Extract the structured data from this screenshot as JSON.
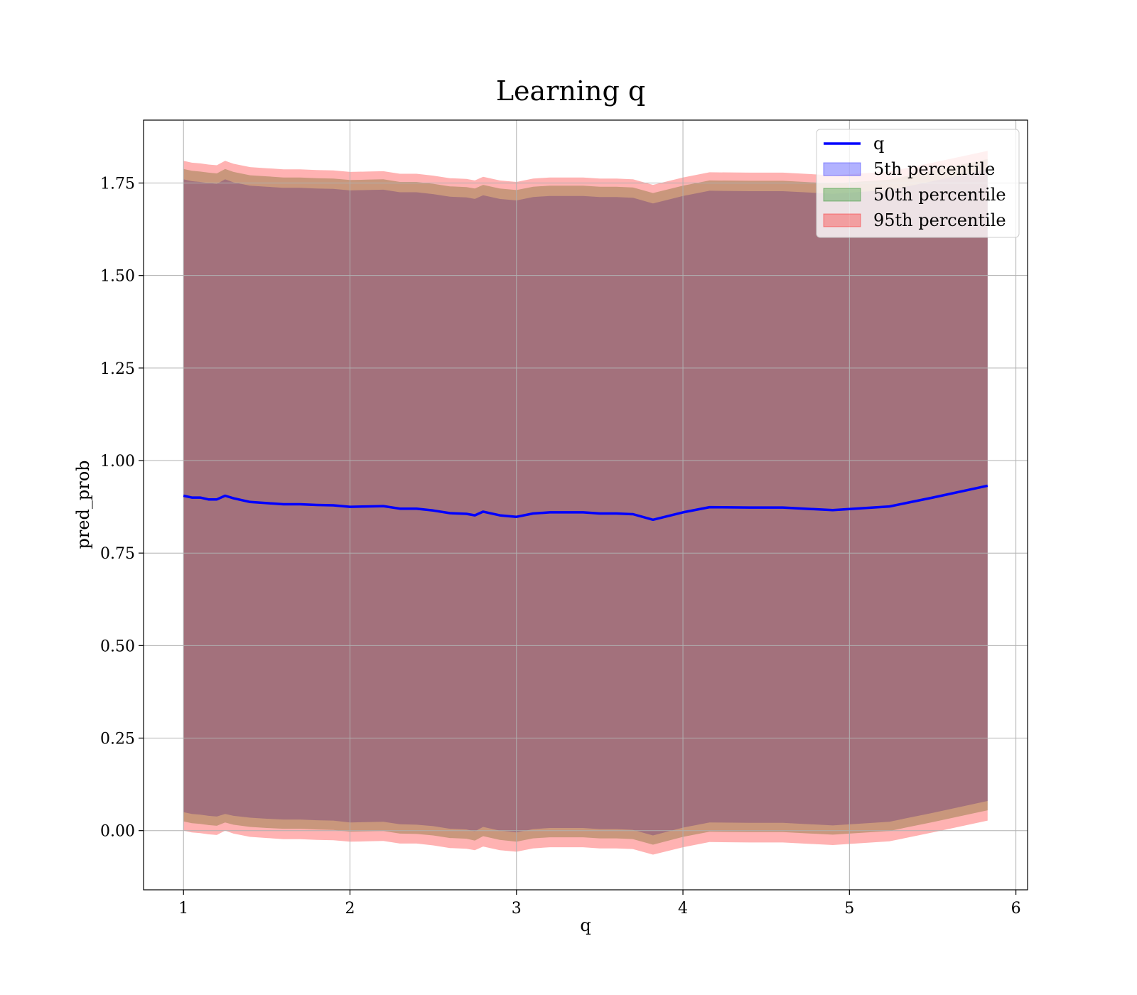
{
  "chart_data": {
    "type": "line",
    "title": "Learning q",
    "xlabel": "q",
    "ylabel": "pred_prob",
    "xlim": [
      0.76,
      6.07
    ],
    "ylim": [
      -0.16,
      1.92
    ],
    "xticks": [
      1,
      2,
      3,
      4,
      5,
      6
    ],
    "xtick_labels": [
      "1",
      "2",
      "3",
      "4",
      "5",
      "6"
    ],
    "yticks": [
      0.0,
      0.25,
      0.5,
      0.75,
      1.0,
      1.25,
      1.5,
      1.75
    ],
    "ytick_labels": [
      "0.00",
      "0.25",
      "0.50",
      "0.75",
      "1.00",
      "1.25",
      "1.50",
      "1.75"
    ],
    "grid": true,
    "legend_position": "top-right",
    "x": [
      1.0,
      1.05,
      1.1,
      1.15,
      1.2,
      1.25,
      1.3,
      1.4,
      1.5,
      1.6,
      1.7,
      1.8,
      1.9,
      2.0,
      2.1,
      2.2,
      2.3,
      2.4,
      2.5,
      2.6,
      2.7,
      2.75,
      2.8,
      2.9,
      3.0,
      3.1,
      3.2,
      3.3,
      3.4,
      3.5,
      3.6,
      3.7,
      3.82,
      4.0,
      4.16,
      4.4,
      4.6,
      4.9,
      5.24,
      5.5,
      5.83
    ],
    "series": [
      {
        "name": "q",
        "kind": "line",
        "color": "#0000ff",
        "values": [
          0.905,
          0.9,
          0.9,
          0.895,
          0.895,
          0.905,
          0.898,
          0.888,
          0.885,
          0.882,
          0.882,
          0.88,
          0.879,
          0.875,
          0.876,
          0.877,
          0.87,
          0.87,
          0.865,
          0.858,
          0.856,
          0.852,
          0.862,
          0.852,
          0.848,
          0.857,
          0.86,
          0.86,
          0.86,
          0.857,
          0.857,
          0.855,
          0.84,
          0.86,
          0.874,
          0.873,
          0.873,
          0.866,
          0.876,
          0.9,
          0.932
        ]
      },
      {
        "name": "5th percentile",
        "kind": "band",
        "color": "#0000ff",
        "lower": [
          0.05,
          0.045,
          0.043,
          0.04,
          0.038,
          0.045,
          0.04,
          0.035,
          0.032,
          0.03,
          0.03,
          0.028,
          0.027,
          0.022,
          0.023,
          0.024,
          0.017,
          0.016,
          0.012,
          0.005,
          0.003,
          -0.002,
          0.01,
          0.0,
          -0.005,
          0.004,
          0.007,
          0.007,
          0.007,
          0.004,
          0.004,
          0.002,
          -0.013,
          0.008,
          0.022,
          0.021,
          0.021,
          0.014,
          0.024,
          0.048,
          0.08
        ],
        "upper": [
          1.76,
          1.755,
          1.753,
          1.75,
          1.748,
          1.76,
          1.752,
          1.743,
          1.74,
          1.737,
          1.737,
          1.735,
          1.734,
          1.73,
          1.731,
          1.732,
          1.725,
          1.725,
          1.72,
          1.713,
          1.711,
          1.707,
          1.717,
          1.707,
          1.703,
          1.712,
          1.715,
          1.715,
          1.715,
          1.712,
          1.712,
          1.71,
          1.695,
          1.715,
          1.729,
          1.728,
          1.728,
          1.721,
          1.731,
          1.755,
          1.787
        ]
      },
      {
        "name": "50th percentile",
        "kind": "band",
        "color": "#008000",
        "lower": [
          0.025,
          0.02,
          0.018,
          0.015,
          0.013,
          0.022,
          0.016,
          0.01,
          0.007,
          0.005,
          0.005,
          0.003,
          0.002,
          -0.003,
          -0.002,
          -0.001,
          -0.008,
          -0.009,
          -0.013,
          -0.02,
          -0.022,
          -0.027,
          -0.015,
          -0.025,
          -0.03,
          -0.021,
          -0.018,
          -0.018,
          -0.018,
          -0.021,
          -0.021,
          -0.023,
          -0.038,
          -0.017,
          -0.003,
          -0.004,
          -0.004,
          -0.011,
          -0.001,
          0.023,
          0.055
        ],
        "upper": [
          1.788,
          1.783,
          1.781,
          1.778,
          1.776,
          1.788,
          1.78,
          1.771,
          1.768,
          1.765,
          1.765,
          1.763,
          1.762,
          1.758,
          1.759,
          1.76,
          1.753,
          1.753,
          1.748,
          1.741,
          1.739,
          1.735,
          1.745,
          1.735,
          1.731,
          1.74,
          1.743,
          1.743,
          1.743,
          1.74,
          1.74,
          1.738,
          1.723,
          1.743,
          1.757,
          1.756,
          1.756,
          1.749,
          1.759,
          1.783,
          1.815
        ]
      },
      {
        "name": "95th percentile",
        "kind": "band",
        "color": "#ff0000",
        "lower": [
          0.0,
          -0.005,
          -0.007,
          -0.01,
          -0.012,
          0.0,
          -0.008,
          -0.017,
          -0.02,
          -0.023,
          -0.023,
          -0.025,
          -0.026,
          -0.03,
          -0.029,
          -0.028,
          -0.035,
          -0.035,
          -0.04,
          -0.047,
          -0.049,
          -0.053,
          -0.043,
          -0.053,
          -0.057,
          -0.048,
          -0.045,
          -0.045,
          -0.045,
          -0.048,
          -0.048,
          -0.05,
          -0.065,
          -0.045,
          -0.031,
          -0.032,
          -0.032,
          -0.039,
          -0.029,
          -0.005,
          0.027
        ],
        "upper": [
          1.81,
          1.805,
          1.803,
          1.8,
          1.798,
          1.81,
          1.802,
          1.793,
          1.79,
          1.787,
          1.787,
          1.785,
          1.784,
          1.78,
          1.781,
          1.782,
          1.775,
          1.775,
          1.77,
          1.763,
          1.761,
          1.757,
          1.767,
          1.757,
          1.753,
          1.762,
          1.765,
          1.765,
          1.765,
          1.762,
          1.762,
          1.76,
          1.745,
          1.765,
          1.779,
          1.778,
          1.778,
          1.771,
          1.781,
          1.805,
          1.837
        ]
      }
    ]
  }
}
